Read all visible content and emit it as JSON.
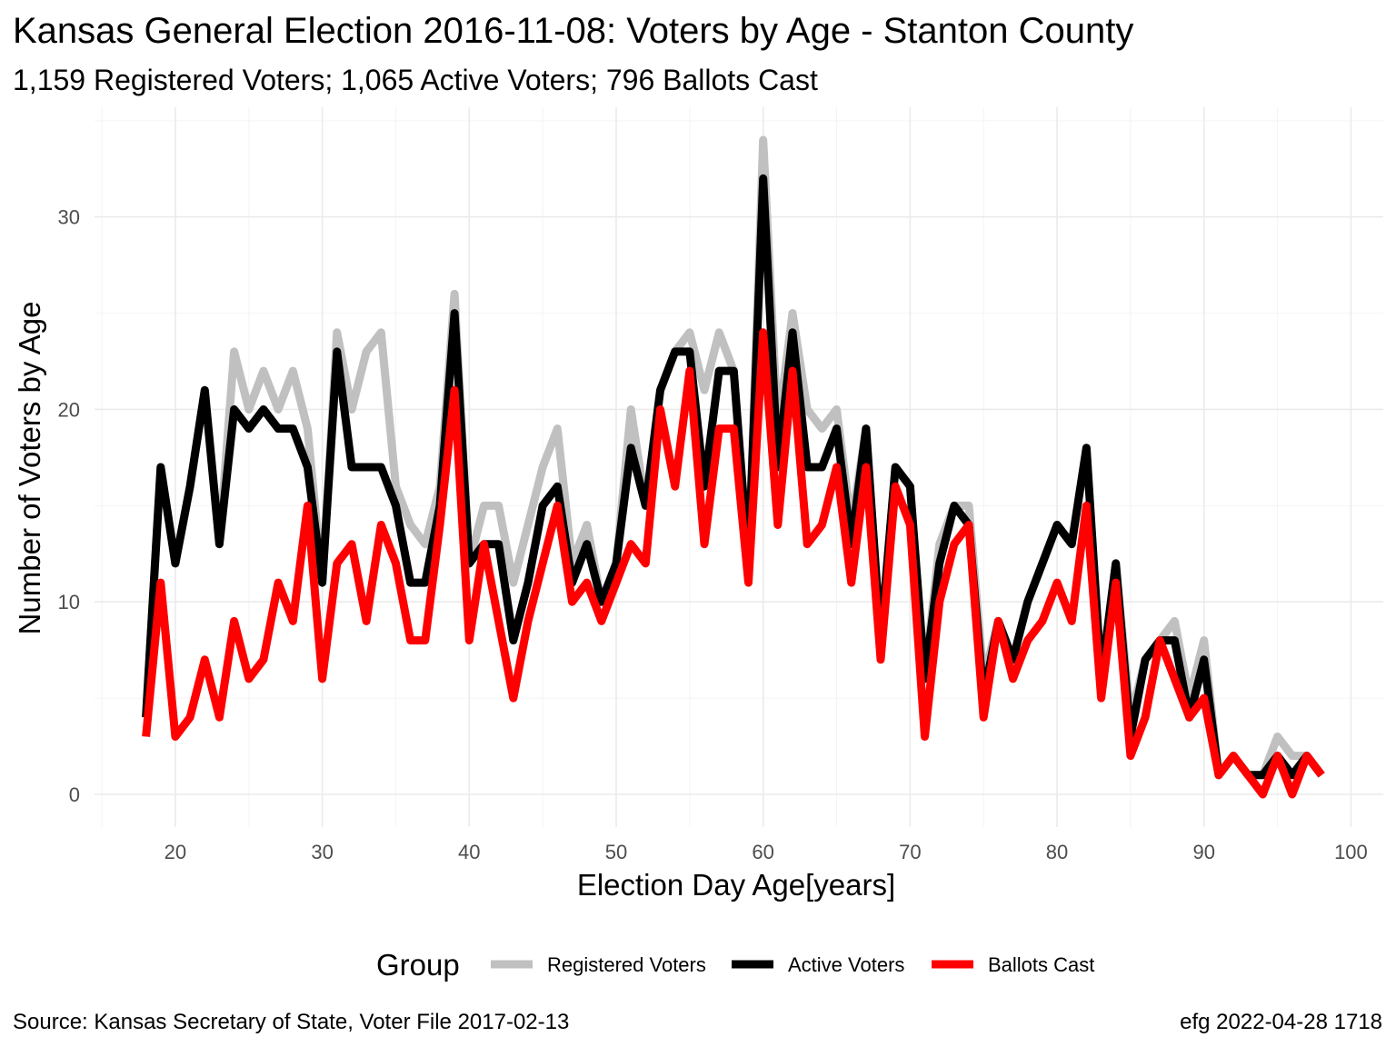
{
  "chart_data": {
    "type": "line",
    "title": "Kansas General Election 2016-11-08:  Voters by Age - Stanton County",
    "subtitle": "1,159 Registered Voters; 1,065 Active Voters; 796 Ballots Cast",
    "xlabel": "Election Day Age[years]",
    "ylabel": "Number of Voters by Age",
    "xlim": [
      18,
      98
    ],
    "ylim": [
      0,
      34
    ],
    "x_ticks": [
      "20",
      "30",
      "40",
      "50",
      "60",
      "70",
      "80",
      "90",
      "100"
    ],
    "y_ticks": [
      "0",
      "10",
      "20",
      "30"
    ],
    "grid": true,
    "legend": {
      "title": "Group",
      "position": "bottom",
      "entries": [
        "Registered Voters",
        "Active Voters",
        "Ballots Cast"
      ]
    },
    "x": [
      18,
      19,
      20,
      21,
      22,
      23,
      24,
      25,
      26,
      27,
      28,
      29,
      30,
      31,
      32,
      33,
      34,
      35,
      36,
      37,
      38,
      39,
      40,
      41,
      42,
      43,
      44,
      45,
      46,
      47,
      48,
      49,
      50,
      51,
      52,
      53,
      54,
      55,
      56,
      57,
      58,
      59,
      60,
      61,
      62,
      63,
      64,
      65,
      66,
      67,
      68,
      69,
      70,
      71,
      72,
      73,
      74,
      75,
      76,
      77,
      78,
      79,
      80,
      81,
      82,
      83,
      84,
      85,
      86,
      87,
      88,
      89,
      90,
      91,
      92,
      93,
      94,
      95,
      96,
      97,
      98
    ],
    "series": [
      {
        "name": "Registered Voters",
        "color": "#c0c0c0",
        "values": [
          4,
          17,
          12,
          16,
          21,
          13,
          23,
          20,
          22,
          20,
          22,
          19,
          11,
          24,
          20,
          23,
          24,
          16,
          14,
          13,
          16,
          26,
          12,
          15,
          15,
          11,
          14,
          17,
          19,
          12,
          14,
          10,
          12,
          20,
          15,
          21,
          23,
          24,
          21,
          24,
          22,
          12,
          34,
          19,
          25,
          20,
          19,
          20,
          14,
          19,
          8,
          17,
          16,
          6,
          13,
          15,
          15,
          6,
          9,
          7,
          10,
          12,
          14,
          13,
          18,
          6,
          12,
          4,
          7,
          8,
          9,
          5,
          8,
          1,
          2,
          1,
          1,
          3,
          2,
          2,
          1
        ]
      },
      {
        "name": "Active Voters",
        "color": "#000000",
        "values": [
          4,
          17,
          12,
          16,
          21,
          13,
          20,
          19,
          20,
          19,
          19,
          17,
          11,
          23,
          17,
          17,
          17,
          15,
          11,
          11,
          15,
          25,
          12,
          13,
          13,
          8,
          11,
          15,
          16,
          11,
          13,
          10,
          12,
          18,
          15,
          21,
          23,
          23,
          16,
          22,
          22,
          12,
          32,
          17,
          24,
          17,
          17,
          19,
          13,
          19,
          8,
          17,
          16,
          6,
          12,
          15,
          14,
          5,
          9,
          7,
          10,
          12,
          14,
          13,
          18,
          6,
          12,
          3,
          7,
          8,
          8,
          4,
          7,
          1,
          2,
          1,
          1,
          2,
          1,
          2,
          1
        ]
      },
      {
        "name": "Ballots Cast",
        "color": "#ff0000",
        "values": [
          3,
          11,
          3,
          4,
          7,
          4,
          9,
          6,
          7,
          11,
          9,
          15,
          6,
          12,
          13,
          9,
          14,
          12,
          8,
          8,
          14,
          21,
          8,
          13,
          9,
          5,
          9,
          12,
          15,
          10,
          11,
          9,
          11,
          13,
          12,
          20,
          16,
          22,
          13,
          19,
          19,
          11,
          24,
          14,
          22,
          13,
          14,
          17,
          11,
          17,
          7,
          16,
          14,
          3,
          10,
          13,
          14,
          4,
          9,
          6,
          8,
          9,
          11,
          9,
          15,
          5,
          11,
          2,
          4,
          8,
          6,
          4,
          5,
          1,
          2,
          1,
          0,
          2,
          0,
          2,
          1
        ]
      }
    ]
  },
  "captions": {
    "source": "Source:  Kansas Secretary of State, Voter File  2017-02-13",
    "credit": "efg 2022-04-28 1718"
  }
}
